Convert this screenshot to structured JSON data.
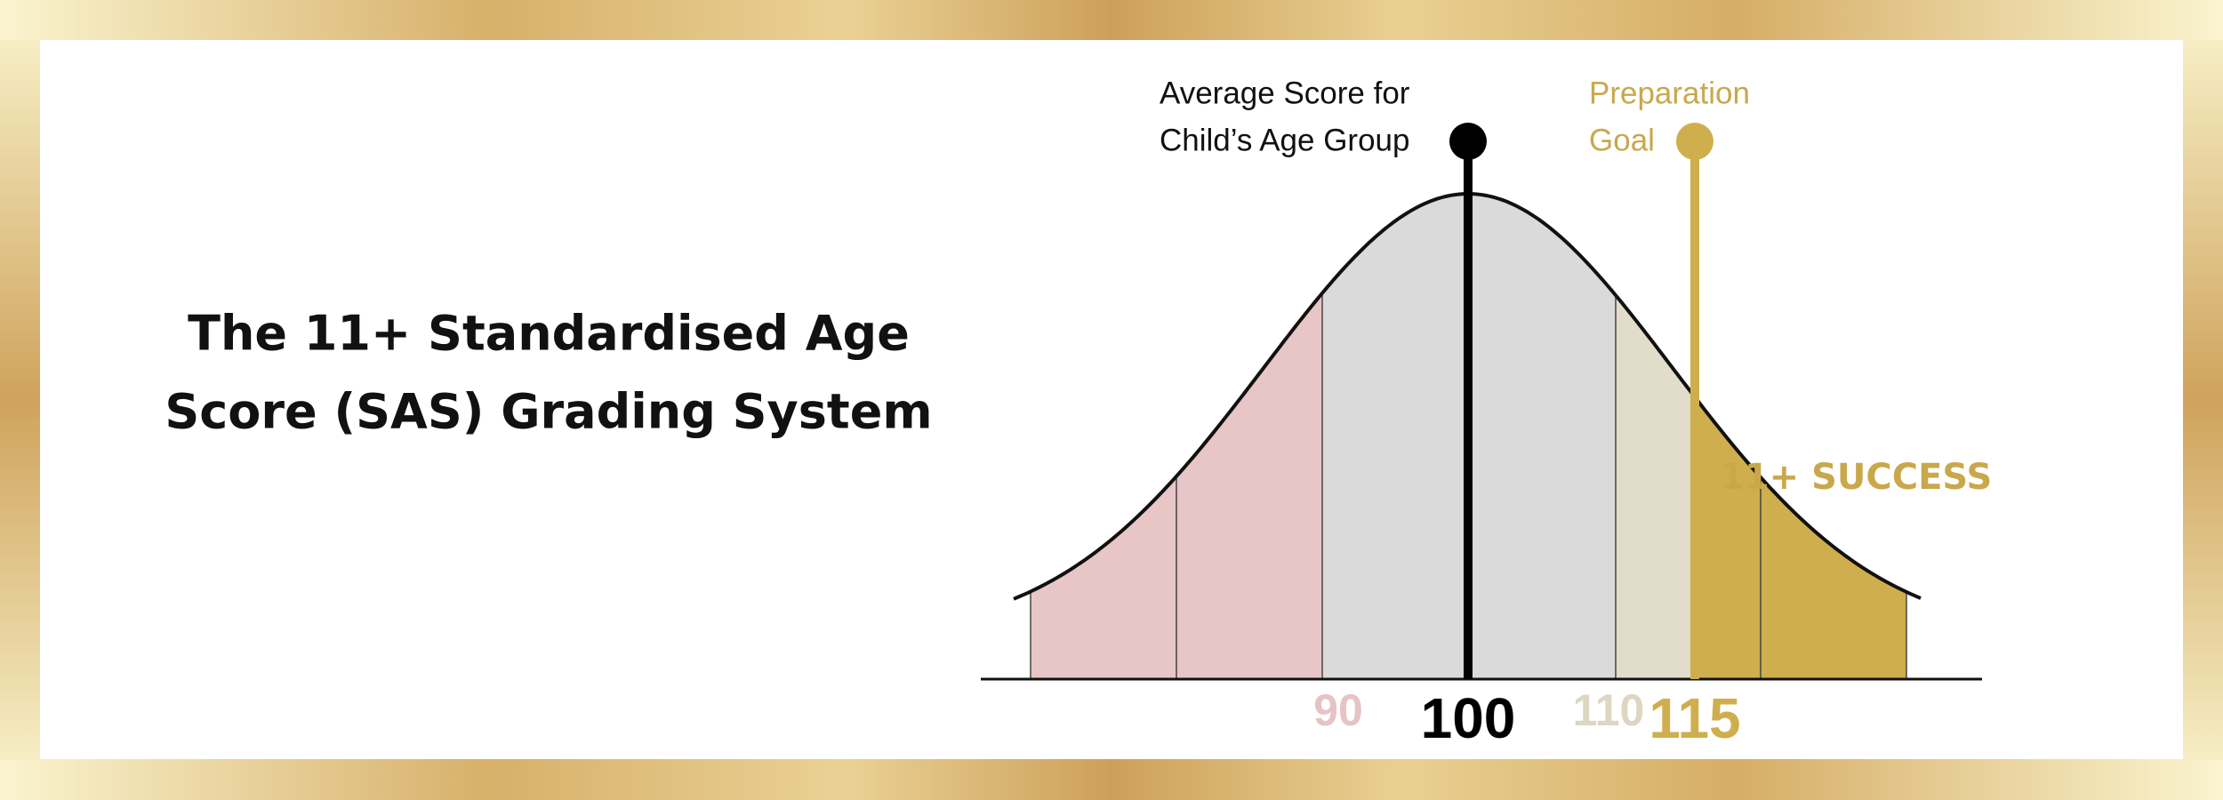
{
  "title": [
    "The 11+ Standardised Age",
    "Score (SAS) Grading System"
  ],
  "markers": {
    "average": {
      "label": [
        "Average Score for",
        "Child’s Age Group"
      ]
    },
    "goal": {
      "label": [
        "Preparation",
        "Goal"
      ]
    }
  },
  "success_label": "11+ SUCCESS",
  "axis_labels": [
    "90",
    "100",
    "110",
    "115"
  ]
}
